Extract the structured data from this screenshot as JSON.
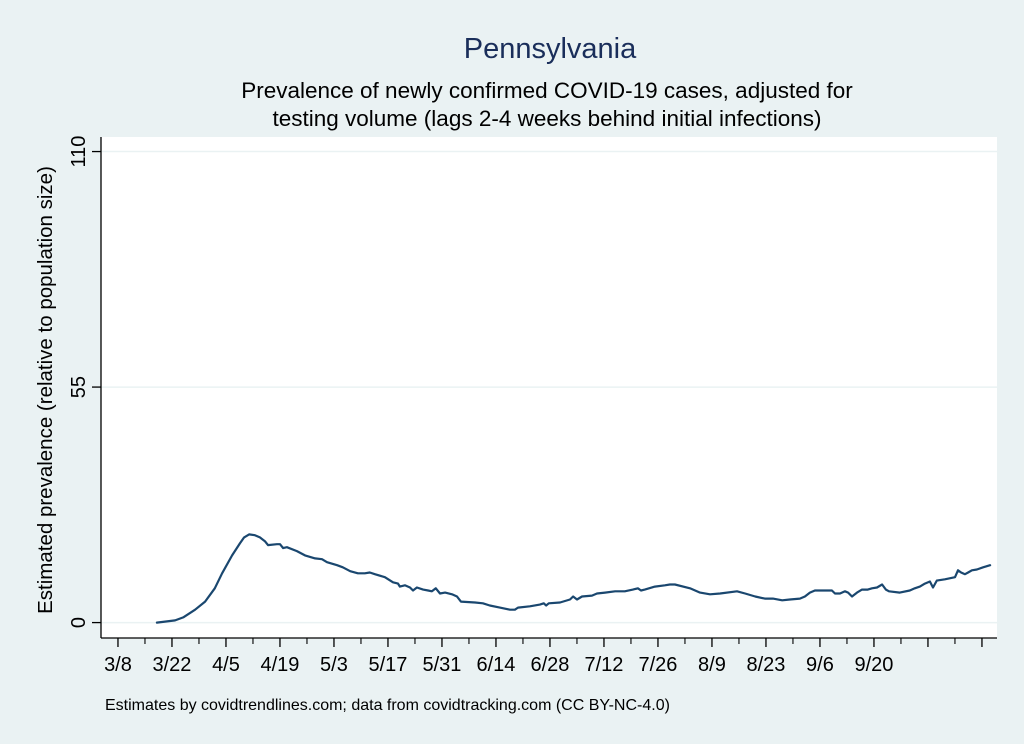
{
  "chart_data": {
    "type": "line",
    "title": "Pennsylvania",
    "subtitle_lines": [
      "Prevalence of newly confirmed COVID-19 cases, adjusted for",
      "testing volume (lags 2-4 weeks behind initial infections)"
    ],
    "xlabel": "",
    "ylabel": "Estimated prevalence (relative to population size)",
    "note": "Estimates by covidtrendlines.com; data from covidtracking.com (CC BY-NC-4.0)",
    "x_unit": "days since 3/8",
    "xlim": [
      -4.4,
      227.9
    ],
    "ylim": [
      -3.6,
      113.4
    ],
    "y_ticks": [
      0,
      55,
      110
    ],
    "y_tick_labels": [
      "0",
      "55",
      "110"
    ],
    "x_major_ticks": [
      0,
      14,
      28,
      42,
      56,
      70,
      84,
      98,
      112,
      126,
      140,
      154,
      168,
      182,
      196,
      210,
      224
    ],
    "x_minor_ticks": [
      7,
      21,
      35,
      49,
      63,
      77,
      91,
      105,
      119,
      133,
      147,
      161,
      175,
      189,
      203,
      217
    ],
    "x_tick_labels": [
      "3/8",
      "3/22",
      "4/5",
      "4/19",
      "5/3",
      "5/17",
      "5/31",
      "6/14",
      "6/28",
      "7/12",
      "7/26",
      "8/9",
      "8/23",
      "9/6",
      "9/20",
      "",
      ""
    ],
    "grid": "horizontal",
    "legend": "none",
    "series": [
      {
        "name": "Pennsylvania",
        "color": "#1a476f",
        "x": [
          10.1,
          14.8,
          16.9,
          20.0,
          22.6,
          25.1,
          27.0,
          29.6,
          31.6,
          32.7,
          34.0,
          35.5,
          36.8,
          38.1,
          38.9,
          41.2,
          42.0,
          42.8,
          43.8,
          46.4,
          48.5,
          51.1,
          52.9,
          54.2,
          56.8,
          58.3,
          60.2,
          62.2,
          64.0,
          65.3,
          66.6,
          69.2,
          71.3,
          72.6,
          73.1,
          74.4,
          75.7,
          76.5,
          77.5,
          79.1,
          80.4,
          81.4,
          82.4,
          83.5,
          84.8,
          86.6,
          87.9,
          88.9,
          92.6,
          94.6,
          96.4,
          99.0,
          101.6,
          102.9,
          103.7,
          106.8,
          109.4,
          110.4,
          111.0,
          111.7,
          114.6,
          117.2,
          118.0,
          119.0,
          120.3,
          122.9,
          124.2,
          126.3,
          128.9,
          131.4,
          133.5,
          134.8,
          135.6,
          136.6,
          139.2,
          141.8,
          143.1,
          144.4,
          148.3,
          150.9,
          153.5,
          156.1,
          160.5,
          162.6,
          165.2,
          167.7,
          169.8,
          172.2,
          174.2,
          176.8,
          178.1,
          179.4,
          180.7,
          183.3,
          185.1,
          185.9,
          187.2,
          188.5,
          189.3,
          190.3,
          191.6,
          192.9,
          194.4,
          195.5,
          196.8,
          198.1,
          199.1,
          199.9,
          202.7,
          205.3,
          206.6,
          207.9,
          209.2,
          210.5,
          211.3,
          212.3,
          214.4,
          217.0,
          217.8,
          218.6,
          219.6,
          220.4,
          221.4,
          222.7,
          224.3,
          226.1
        ],
        "y": [
          0.0,
          0.5,
          1.2,
          3.0,
          4.9,
          8.0,
          11.5,
          15.7,
          18.5,
          19.9,
          20.6,
          20.4,
          19.9,
          19.0,
          18.1,
          18.3,
          18.3,
          17.4,
          17.6,
          16.7,
          15.7,
          15.0,
          14.8,
          14.1,
          13.4,
          12.9,
          12.0,
          11.5,
          11.5,
          11.7,
          11.3,
          10.6,
          9.4,
          9.1,
          8.4,
          8.7,
          8.2,
          7.5,
          8.2,
          7.7,
          7.5,
          7.3,
          8.0,
          6.8,
          7.0,
          6.6,
          6.1,
          4.9,
          4.7,
          4.5,
          4.0,
          3.5,
          3.0,
          3.0,
          3.5,
          3.8,
          4.2,
          4.5,
          4.0,
          4.5,
          4.7,
          5.4,
          6.1,
          5.4,
          6.1,
          6.3,
          6.8,
          7.0,
          7.3,
          7.3,
          7.7,
          8.0,
          7.5,
          7.7,
          8.4,
          8.7,
          8.9,
          8.9,
          8.0,
          7.0,
          6.6,
          6.8,
          7.3,
          6.8,
          6.1,
          5.6,
          5.6,
          5.2,
          5.4,
          5.6,
          6.1,
          7.0,
          7.5,
          7.5,
          7.5,
          6.8,
          6.8,
          7.3,
          7.0,
          6.1,
          7.0,
          7.7,
          7.7,
          8.0,
          8.2,
          8.9,
          7.7,
          7.3,
          7.0,
          7.5,
          8.0,
          8.4,
          9.1,
          9.6,
          8.2,
          9.8,
          10.1,
          10.6,
          12.2,
          11.7,
          11.3,
          11.7,
          12.2,
          12.4,
          12.9,
          13.4
        ]
      }
    ]
  }
}
